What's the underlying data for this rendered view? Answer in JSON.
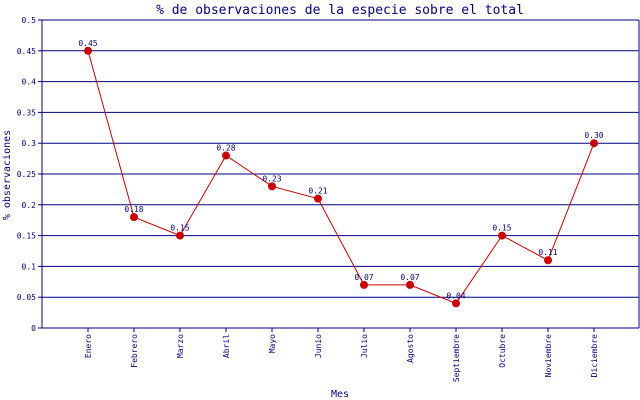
{
  "chart_data": {
    "type": "line",
    "title": "% de observaciones de la especie sobre el total",
    "xlabel": "Mes",
    "ylabel": "% observaciones",
    "categories": [
      "Enero",
      "Febrero",
      "Marzo",
      "Abril",
      "Mayo",
      "Junio",
      "Julio",
      "Agosto",
      "Septiembre",
      "Octubre",
      "Noviembre",
      "Diciembre"
    ],
    "values": [
      0.45,
      0.18,
      0.15,
      0.28,
      0.23,
      0.21,
      0.07,
      0.07,
      0.04,
      0.15,
      0.11,
      0.3
    ],
    "data_labels": [
      "0.45",
      "0.18",
      "0.15",
      "0.28",
      "0.23",
      "0.21",
      "0.07",
      "0.07",
      "0.04",
      "0.15",
      "0.11",
      "0.30"
    ],
    "yticks": [
      0,
      0.05,
      0.1,
      0.15,
      0.2,
      0.25,
      0.3,
      0.35,
      0.4,
      0.45,
      0.5
    ],
    "ytick_labels": [
      "0",
      "0.05",
      "0.1",
      "0.15",
      "0.2",
      "0.25",
      "0.3",
      "0.35",
      "0.4",
      "0.45",
      "0.5"
    ],
    "ylim": [
      0,
      0.5
    ],
    "grid": true,
    "legend": "none",
    "colors": {
      "line": "#cc0000",
      "marker": "#cc0000",
      "grid": "#000080",
      "text": "#000080"
    }
  }
}
